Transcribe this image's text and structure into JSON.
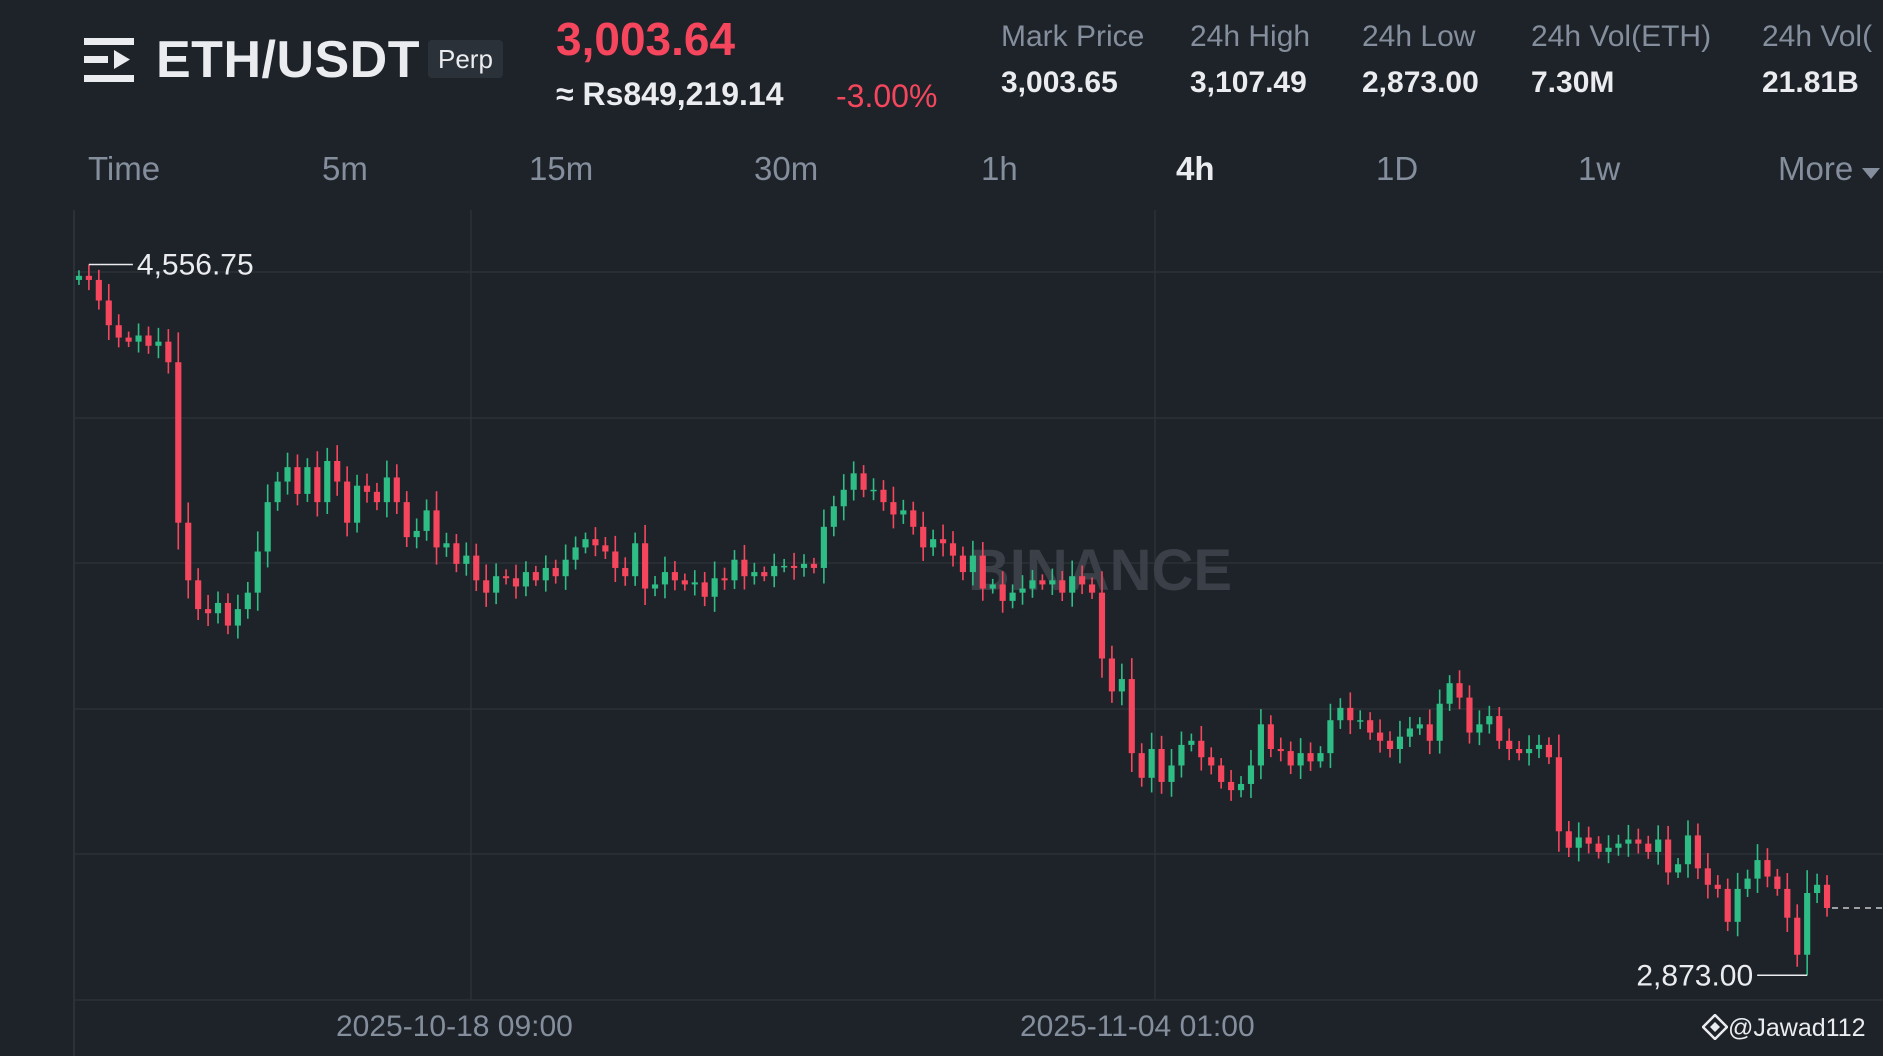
{
  "header": {
    "pair": "ETH/USDT",
    "contract_type": "Perp",
    "last_price": "3,003.64",
    "fiat_price": "≈ Rs849,219.14",
    "change_pct": "-3.00%",
    "stats": [
      {
        "label": "Mark Price",
        "value": "3,003.65"
      },
      {
        "label": "24h High",
        "value": "3,107.49"
      },
      {
        "label": "24h Low",
        "value": "2,873.00"
      },
      {
        "label": "24h Vol(ETH)",
        "value": "7.30M"
      },
      {
        "label": "24h Vol(",
        "value": "21.81B"
      }
    ]
  },
  "intervals": {
    "items": [
      "Time",
      "5m",
      "15m",
      "30m",
      "1h",
      "4h",
      "1D",
      "1w",
      "More"
    ],
    "active": "4h"
  },
  "colors": {
    "background": "#1e2329",
    "up": "#2ebd85",
    "down": "#f6465d",
    "muted": "#848e9c",
    "text": "#eaecef"
  },
  "chart_data": {
    "type": "candlestick",
    "interval": "4h",
    "x_labels": [
      "2025-10-18 09:00",
      "2025-11-04 01:00"
    ],
    "high_marker": "4,556.75",
    "low_marker": "2,873.00",
    "watermark": "BINANCE",
    "ylim": [
      2780,
      4700
    ],
    "close_series": [
      4540,
      4530,
      4480,
      4420,
      4390,
      4380,
      4395,
      4370,
      4380,
      4330,
      3940,
      3800,
      3730,
      3720,
      3745,
      3690,
      3730,
      3770,
      3870,
      3990,
      4040,
      4075,
      4010,
      4075,
      3990,
      4090,
      4040,
      3940,
      4030,
      4015,
      3990,
      4050,
      3990,
      3905,
      3920,
      3970,
      3880,
      3890,
      3840,
      3860,
      3800,
      3770,
      3810,
      3805,
      3785,
      3820,
      3800,
      3830,
      3810,
      3850,
      3880,
      3900,
      3885,
      3870,
      3830,
      3810,
      3890,
      3780,
      3790,
      3820,
      3800,
      3790,
      3795,
      3760,
      3805,
      3800,
      3850,
      3810,
      3820,
      3810,
      3835,
      3835,
      3830,
      3840,
      3830,
      3930,
      3980,
      4020,
      4060,
      4020,
      4020,
      3990,
      3960,
      3970,
      3930,
      3880,
      3900,
      3890,
      3860,
      3820,
      3860,
      3780,
      3790,
      3750,
      3770,
      3780,
      3800,
      3790,
      3800,
      3770,
      3810,
      3790,
      3770,
      3610,
      3530,
      3560,
      3380,
      3320,
      3390,
      3310,
      3350,
      3400,
      3410,
      3370,
      3350,
      3310,
      3290,
      3305,
      3350,
      3450,
      3390,
      3385,
      3350,
      3380,
      3360,
      3380,
      3460,
      3490,
      3460,
      3460,
      3430,
      3410,
      3390,
      3420,
      3440,
      3450,
      3410,
      3500,
      3550,
      3515,
      3430,
      3450,
      3470,
      3410,
      3390,
      3380,
      3390,
      3400,
      3370,
      3190,
      3150,
      3175,
      3160,
      3140,
      3150,
      3160,
      3170,
      3160,
      3140,
      3170,
      3090,
      3110,
      3180,
      3100,
      3060,
      3050,
      2970,
      3050,
      3075,
      3120,
      3080,
      3050,
      2980,
      2890,
      3040,
      3060,
      3003.64
    ]
  },
  "footer": {
    "user_tag": "@Jawad112"
  }
}
